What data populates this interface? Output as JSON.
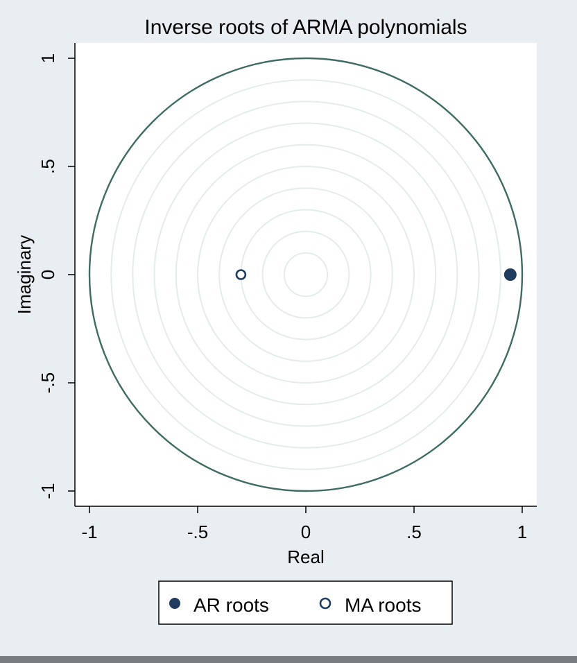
{
  "chart_data": {
    "type": "scatter",
    "title": "Inverse roots of ARMA polynomials",
    "xlabel": "Real",
    "ylabel": "Imaginary",
    "xlim": [
      -1.05,
      1.07
    ],
    "ylim": [
      -1.07,
      1.07
    ],
    "x_ticks": [
      -1,
      -0.5,
      0,
      0.5,
      1
    ],
    "y_ticks": [
      -1,
      -0.5,
      0,
      0.5,
      1
    ],
    "x_tick_labels": [
      "-1",
      "-.5",
      "0",
      ".5",
      "1"
    ],
    "y_tick_labels": [
      "-1",
      "-.5",
      "0",
      ".5",
      "1"
    ],
    "unit_circle": true,
    "grid": "concentric circles",
    "series": [
      {
        "name": "AR roots",
        "marker": "filled-circle",
        "color": "#1f3b5e",
        "points": [
          {
            "x": 0.945,
            "y": 0
          }
        ]
      },
      {
        "name": "MA roots",
        "marker": "hollow-circle",
        "color": "#1f3b5e",
        "points": [
          {
            "x": -0.3,
            "y": 0
          }
        ]
      }
    ],
    "legend": {
      "placement": "bottom"
    }
  },
  "colors": {
    "background": "#e8eef1",
    "plot_background": "#ffffff",
    "unit_circle": "#3e6b64",
    "grid_circles": "#e3ecea",
    "axis": "#000000",
    "marker": "#1f3b5e"
  }
}
